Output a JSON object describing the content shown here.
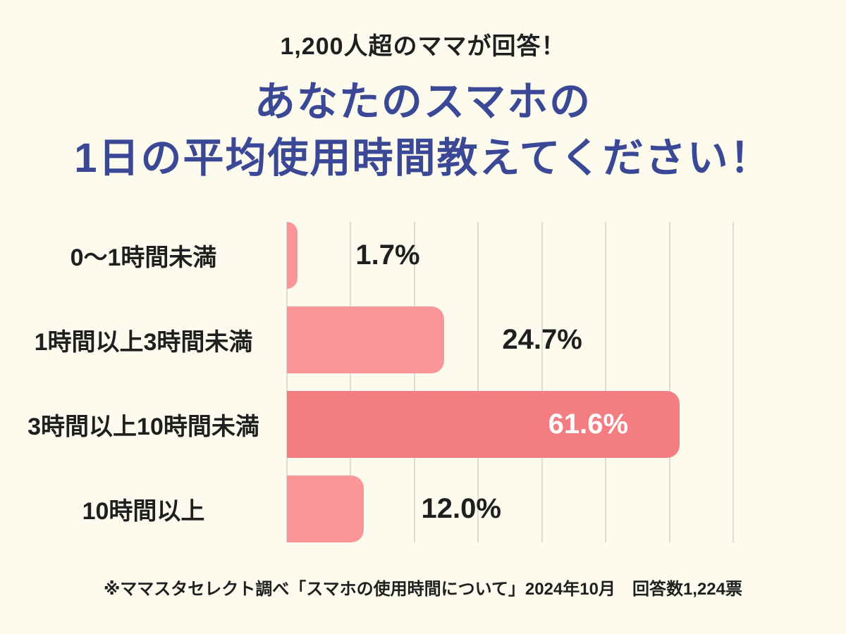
{
  "header": {
    "subtitle": "1,200人超のママが回答！"
  },
  "title": {
    "line1": "あなたのスマホの",
    "line2": "1日の平均使用時間教えてください！",
    "color": "#3B4896"
  },
  "chart_data": {
    "type": "bar",
    "orientation": "horizontal",
    "title": "あなたのスマホの1日の平均使用時間教えてください！",
    "categories": [
      "0〜1時間未満",
      "1時間以上3時間未満",
      "3時間以上10時間未満",
      "10時間以上"
    ],
    "values": [
      1.7,
      24.7,
      61.6,
      12.0
    ],
    "value_labels": [
      "1.7%",
      "24.7%",
      "61.6%",
      "12.0%"
    ],
    "bar_colors": [
      "#FB9598",
      "#FB9598",
      "#F47D81",
      "#FB9598"
    ],
    "value_label_inside": [
      false,
      false,
      true,
      false
    ],
    "value_label_color_outside": "#1F1F1F",
    "value_label_color_inside": "#FFFFFF",
    "xlim": [
      0,
      70
    ],
    "grid_step": 10,
    "grid_color": "#DEDDD3",
    "grid": "vertical-lines",
    "legend_position": "none",
    "xlabel": "",
    "ylabel": ""
  },
  "footer": {
    "note": "※ママスタセレクト調べ「スマホの使用時間について」2024年10月　回答数1,224票"
  },
  "colors": {
    "background": "#FCFBEE",
    "text": "#1F1F1F"
  }
}
